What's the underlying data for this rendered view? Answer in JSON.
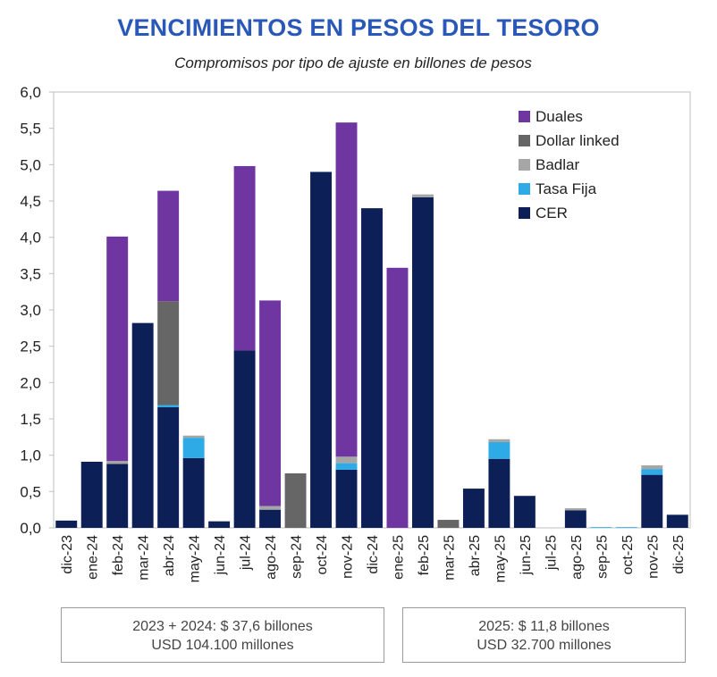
{
  "title": "VENCIMIENTOS EN PESOS DEL TESORO",
  "subtitle": "Compromisos por tipo de ajuste en billones de pesos",
  "colors": {
    "Duales": "#6f35a0",
    "Dollar linked": "#666666",
    "Badlar": "#a6a6a6",
    "Tasa Fija": "#2eaae6",
    "CER": "#0c1f56"
  },
  "chart_data": {
    "type": "bar",
    "stacked": true,
    "categories": [
      "dic-23",
      "ene-24",
      "feb-24",
      "mar-24",
      "abr-24",
      "may-24",
      "jun-24",
      "jul-24",
      "ago-24",
      "sep-24",
      "oct-24",
      "nov-24",
      "dic-24",
      "ene-25",
      "feb-25",
      "mar-25",
      "abr-25",
      "may-25",
      "jun-25",
      "jul-25",
      "ago-25",
      "sep-25",
      "oct-25",
      "nov-25",
      "dic-25"
    ],
    "series": [
      {
        "name": "CER",
        "values": [
          0.1,
          0.91,
          0.88,
          2.82,
          1.66,
          0.96,
          0.09,
          2.44,
          0.25,
          0,
          4.9,
          0.8,
          4.4,
          0,
          4.55,
          0,
          0.54,
          0.95,
          0.44,
          0,
          0.24,
          0,
          0,
          0.73,
          0.18
        ]
      },
      {
        "name": "Tasa Fija",
        "values": [
          0,
          0,
          0,
          0,
          0.03,
          0.28,
          0,
          0,
          0,
          0,
          0,
          0.09,
          0,
          0,
          0,
          0,
          0,
          0.23,
          0,
          0,
          0,
          0.01,
          0.01,
          0.08,
          0
        ]
      },
      {
        "name": "Badlar",
        "values": [
          0,
          0,
          0.04,
          0,
          0,
          0.03,
          0,
          0,
          0.05,
          0,
          0,
          0.09,
          0,
          0,
          0.04,
          0,
          0,
          0.04,
          0,
          0,
          0.03,
          0,
          0,
          0.05,
          0
        ]
      },
      {
        "name": "Dollar linked",
        "values": [
          0,
          0,
          0,
          0,
          1.43,
          0,
          0,
          0,
          0,
          0.75,
          0,
          0,
          0,
          0,
          0,
          0.11,
          0,
          0,
          0,
          0,
          0,
          0,
          0,
          0,
          0
        ]
      },
      {
        "name": "Duales",
        "values": [
          0,
          0,
          3.09,
          0,
          1.52,
          0,
          0,
          2.54,
          2.83,
          0,
          0,
          4.6,
          0,
          3.58,
          0,
          0,
          0,
          0,
          0,
          0,
          0,
          0,
          0,
          0,
          0
        ]
      }
    ],
    "legend_order": [
      "Duales",
      "Dollar linked",
      "Badlar",
      "Tasa Fija",
      "CER"
    ],
    "legend_position": "top-right",
    "ylim": [
      0,
      6
    ],
    "yticks": [
      "0,0",
      "0,5",
      "1,0",
      "1,5",
      "2,0",
      "2,5",
      "3,0",
      "3,5",
      "4,0",
      "4,5",
      "5,0",
      "5,5",
      "6,0"
    ],
    "grid": false
  },
  "summary": {
    "left": {
      "line1": "2023 + 2024: $ 37,6 billones",
      "line2": "USD 104.100 millones"
    },
    "right": {
      "line1": "2025: $ 11,8 billones",
      "line2": "USD 32.700 millones"
    }
  }
}
